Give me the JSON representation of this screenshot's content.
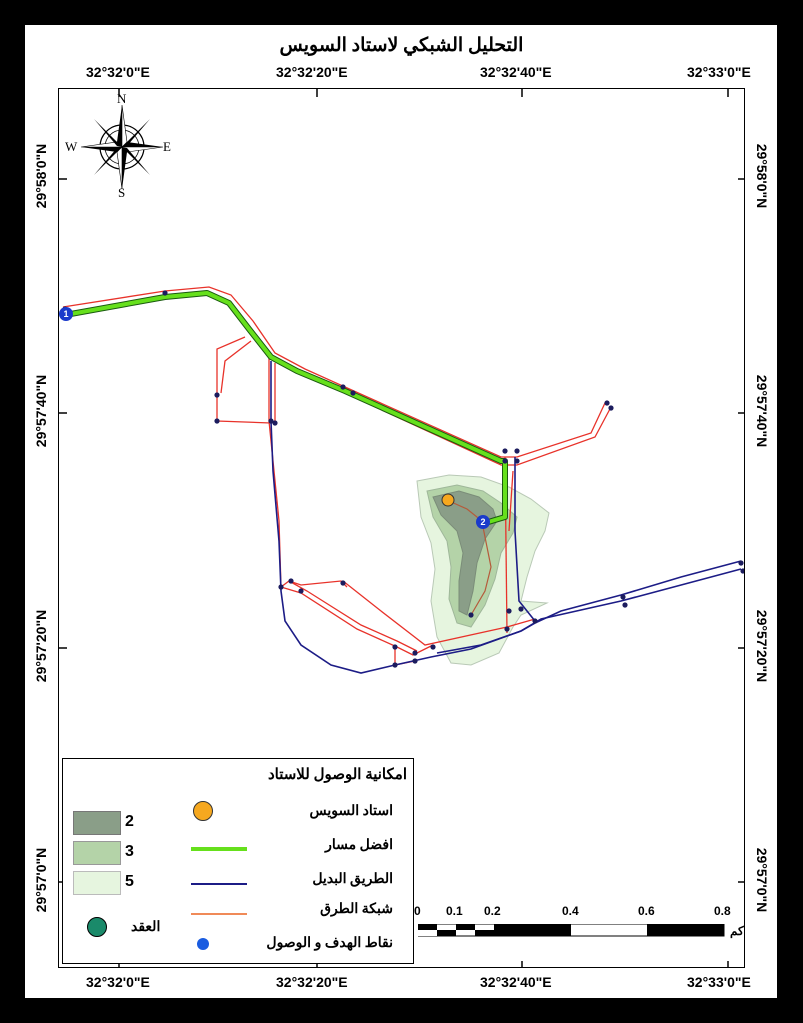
{
  "title": "التحليل الشبكي لاستاد السويس",
  "coords": {
    "top": [
      "32°32'0\"E",
      "32°32'20\"E",
      "32°32'40\"E",
      "32°33'0\"E"
    ],
    "bottom": [
      "32°32'0\"E",
      "32°32'20\"E",
      "32°32'40\"E",
      "32°33'0\"E"
    ],
    "left": [
      "29°58'0\"N",
      "29°57'40\"N",
      "29°57'20\"N",
      "29°57'0\"N"
    ],
    "right": [
      "29°58'0\"N",
      "29°57'40\"N",
      "29°57'20\"N",
      "29°57'0\"N"
    ]
  },
  "compass": {
    "n": "N",
    "s": "S",
    "e": "E",
    "w": "W"
  },
  "markers": {
    "start": "1",
    "end": "2"
  },
  "legend": {
    "title": "امكانية الوصول للاستاد",
    "zones": [
      "2",
      "3",
      "5"
    ],
    "stadium": "استاد السويس",
    "best_route": "افضل مسار",
    "alt_route": "الطريق البديل",
    "network": "شبكة الطرق",
    "nodes": "العقد",
    "stops": "نقاط الهدف و الوصول"
  },
  "scale": {
    "ticks": [
      "0",
      "0.1",
      "0.2",
      "0.4",
      "0.6",
      "0.8"
    ],
    "unit": "كم"
  },
  "colors": {
    "zone2": "#8a9e88",
    "zone3": "#b4d3a8",
    "zone5": "#e6f5df",
    "best_route": "#66e01c",
    "alt_route": "#1c1c86",
    "network": "#e8322a",
    "stadium": "#f6a81f",
    "node": "#1a8a6a",
    "stop": "#1a5ce0"
  }
}
